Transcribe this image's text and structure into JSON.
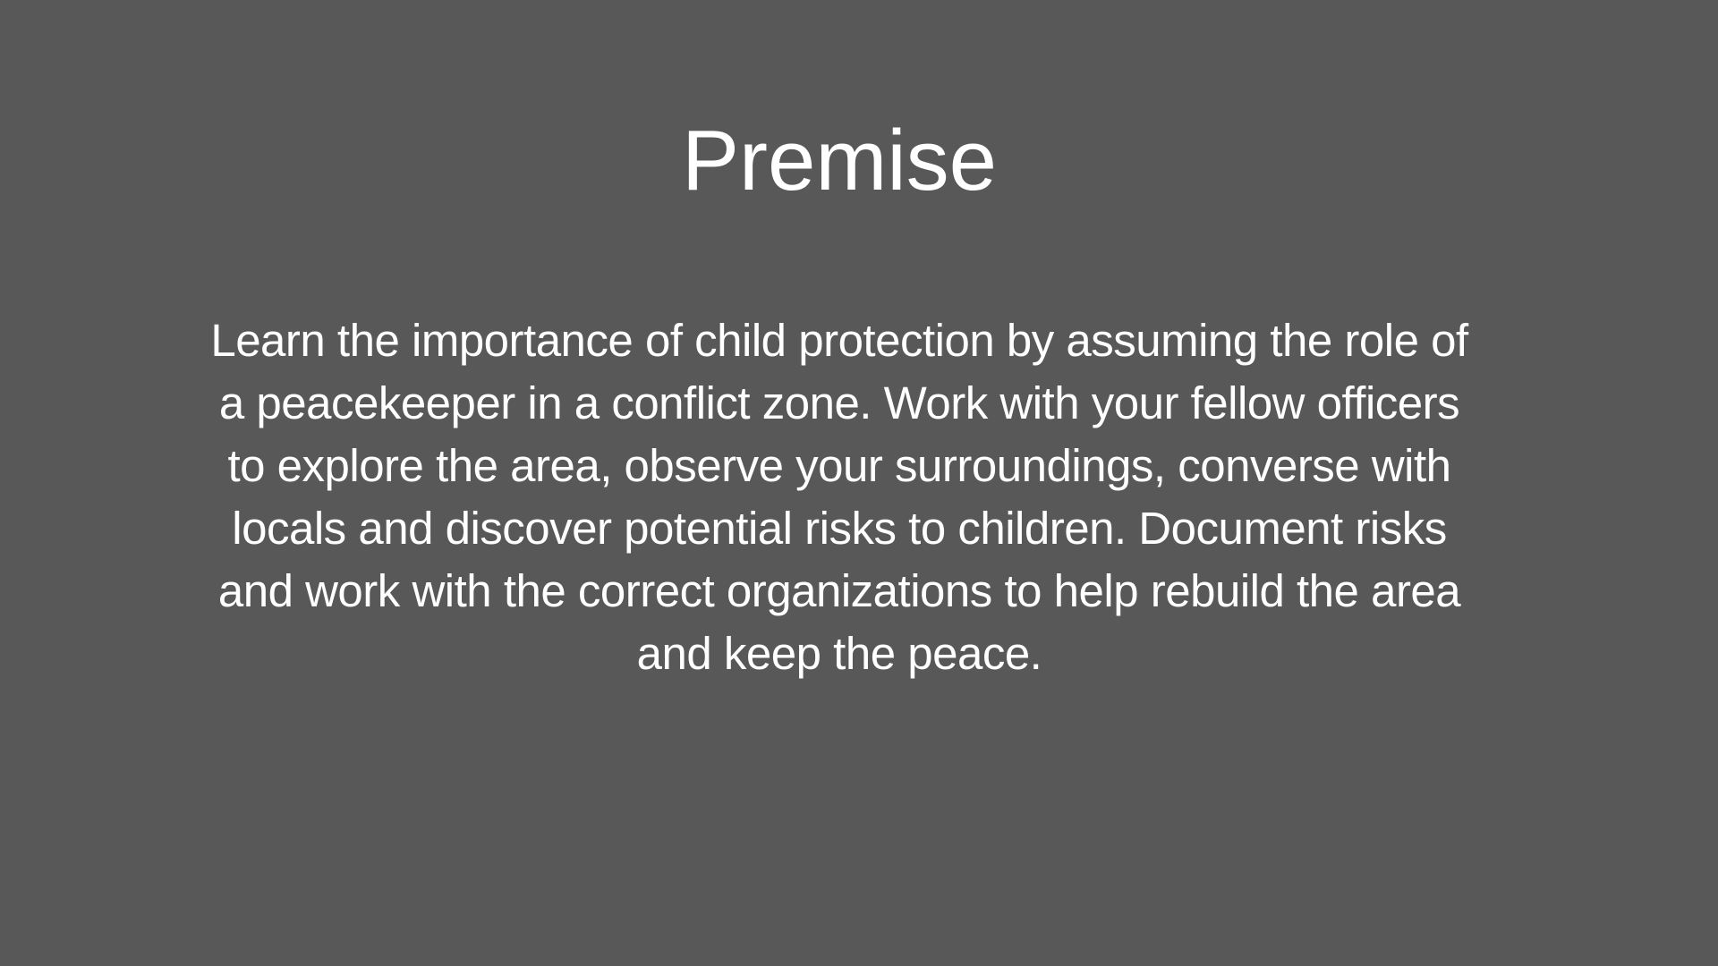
{
  "slide": {
    "title": "Premise",
    "body_lines": [
      "Learn the importance of child protection by assuming the role of",
      "a peacekeeper in a conflict zone. Work with your fellow officers",
      "to explore the area, observe your surroundings, converse with",
      "locals and discover potential risks to children. Document risks",
      "and work with the correct organizations to help rebuild the area",
      "and keep the peace."
    ]
  },
  "colors": {
    "background": "#585858",
    "text": "#ffffff"
  }
}
